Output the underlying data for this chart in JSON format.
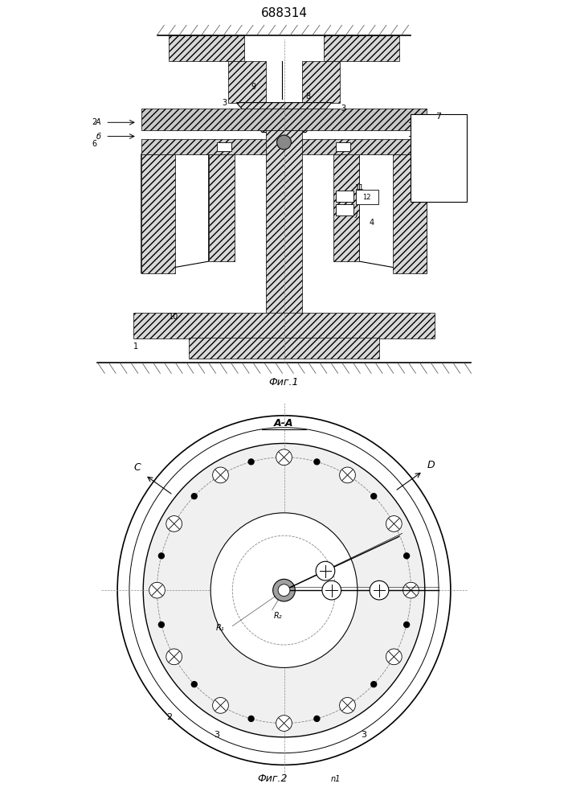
{
  "title": "688314",
  "fig1_caption": "Фиг.1",
  "fig2_caption": "Фиг.2",
  "fig2_label": "А-А",
  "bg_color": "#ffffff",
  "line_color": "#000000",
  "hatch_color": "#000000",
  "light_gray": "#d0d0d0",
  "gray": "#a0a0a0"
}
